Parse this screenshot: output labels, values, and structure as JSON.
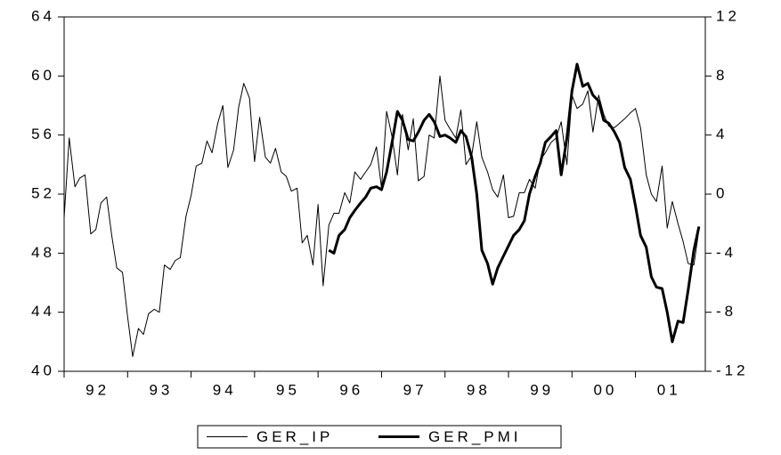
{
  "chart_data": {
    "type": "line",
    "x": [
      1992,
      1992.08,
      1992.17,
      1992.25,
      1992.33,
      1992.42,
      1992.5,
      1992.58,
      1992.67,
      1992.75,
      1992.83,
      1992.92,
      1993,
      1993.08,
      1993.17,
      1993.25,
      1993.33,
      1993.42,
      1993.5,
      1993.58,
      1993.67,
      1993.75,
      1993.83,
      1993.92,
      1994,
      1994.08,
      1994.17,
      1994.25,
      1994.33,
      1994.42,
      1994.5,
      1994.58,
      1994.67,
      1994.75,
      1994.83,
      1994.92,
      1995,
      1995.08,
      1995.17,
      1995.25,
      1995.33,
      1995.42,
      1995.5,
      1995.58,
      1995.67,
      1995.75,
      1995.83,
      1995.92,
      1996,
      1996.08,
      1996.17,
      1996.25,
      1996.33,
      1996.42,
      1996.5,
      1996.58,
      1996.67,
      1996.75,
      1996.83,
      1996.92,
      1997,
      1997.08,
      1997.17,
      1997.25,
      1997.33,
      1997.42,
      1997.5,
      1997.58,
      1997.67,
      1997.75,
      1997.83,
      1997.92,
      1998,
      1998.08,
      1998.17,
      1998.25,
      1998.33,
      1998.42,
      1998.5,
      1998.58,
      1998.67,
      1998.75,
      1998.83,
      1998.92,
      1999,
      1999.08,
      1999.17,
      1999.25,
      1999.33,
      1999.42,
      1999.5,
      1999.58,
      1999.67,
      1999.75,
      1999.83,
      1999.92,
      2000,
      2000.08,
      2000.17,
      2000.25,
      2000.33,
      2000.42,
      2000.5,
      2000.58,
      2000.67,
      2000.75,
      2000.83,
      2000.92,
      2001,
      2001.08,
      2001.17,
      2001.25,
      2001.33,
      2001.42,
      2001.5,
      2001.58,
      2001.67,
      2001.75,
      2001.83,
      2001.92,
      2002
    ],
    "series": [
      {
        "name": "GER_IP",
        "color": "#000000",
        "line_width": 1,
        "values": [
          50.4,
          55.8,
          52.5,
          53.1,
          53.3,
          49.3,
          49.6,
          51.4,
          51.8,
          49.2,
          47.0,
          46.7,
          43.7,
          41.0,
          42.9,
          42.5,
          43.9,
          44.2,
          44.0,
          47.2,
          46.9,
          47.5,
          47.7,
          50.5,
          51.9,
          53.9,
          54.1,
          55.6,
          54.8,
          56.8,
          58.0,
          53.8,
          55.0,
          57.9,
          59.5,
          58.5,
          54.2,
          57.2,
          54.5,
          54.1,
          55.1,
          53.5,
          53.2,
          52.2,
          52.4,
          48.7,
          49.2,
          47.2,
          51.3,
          45.8,
          49.9,
          50.7,
          50.7,
          52.1,
          51.4,
          53.5,
          53.0,
          53.5,
          54.0,
          55.2,
          52.4,
          57.6,
          55.8,
          53.3,
          57.4,
          55.0,
          57.1,
          52.9,
          53.2,
          56.0,
          55.8,
          60.0,
          57.0,
          56.4,
          55.8,
          57.7,
          54.0,
          54.6,
          56.9,
          54.5,
          53.5,
          52.3,
          51.8,
          53.3,
          50.4,
          50.5,
          52.1,
          52.1,
          53.0,
          52.4,
          54.3,
          54.8,
          55.5,
          55.8,
          56.9,
          54.0,
          58.7,
          57.8,
          58.1,
          59.0,
          56.2,
          58.7,
          57.4,
          56.6,
          56.5,
          56.8,
          57.1,
          57.5,
          57.8,
          56.5,
          53.3,
          52.0,
          51.5,
          53.9,
          49.7,
          51.5,
          50.0,
          48.8,
          47.3,
          47.2,
          49.6
        ]
      },
      {
        "name": "GER_PMI",
        "color": "#000000",
        "line_width": 3,
        "axis": "y2",
        "values": [
          null,
          null,
          null,
          null,
          null,
          null,
          null,
          null,
          null,
          null,
          null,
          null,
          null,
          null,
          null,
          null,
          null,
          null,
          null,
          null,
          null,
          null,
          null,
          null,
          null,
          null,
          null,
          null,
          null,
          null,
          null,
          null,
          null,
          null,
          null,
          null,
          null,
          null,
          null,
          null,
          null,
          null,
          null,
          null,
          null,
          null,
          null,
          null,
          null,
          null,
          -3.8,
          -4.0,
          -2.8,
          -2.4,
          -1.6,
          -1.1,
          -0.6,
          -0.2,
          0.4,
          0.5,
          0.3,
          1.5,
          3.6,
          5.6,
          5.0,
          3.7,
          3.6,
          4.2,
          5.0,
          5.4,
          4.9,
          3.9,
          4.0,
          3.8,
          3.5,
          4.3,
          3.9,
          2.5,
          0.0,
          -3.8,
          -4.7,
          -6.1,
          -5.0,
          -4.2,
          -3.5,
          -2.8,
          -2.4,
          -1.8,
          0.0,
          1.2,
          2.1,
          3.5,
          3.9,
          4.3,
          1.3,
          3.8,
          7.0,
          8.8,
          7.3,
          7.5,
          6.7,
          6.3,
          5.0,
          4.8,
          4.2,
          3.5,
          1.8,
          1.0,
          -0.8,
          -2.8,
          -3.6,
          -5.6,
          -6.3,
          -6.4,
          -8.0,
          -10.0,
          -8.6,
          -8.7,
          -6.5,
          -3.8,
          -2.2
        ]
      }
    ],
    "xlim": [
      1992,
      2002.1
    ],
    "xticks": [
      {
        "value": 1992,
        "label": "92"
      },
      {
        "value": 1993,
        "label": "93"
      },
      {
        "value": 1994,
        "label": "94"
      },
      {
        "value": 1995,
        "label": "95"
      },
      {
        "value": 1996,
        "label": "96"
      },
      {
        "value": 1997,
        "label": "97"
      },
      {
        "value": 1998,
        "label": "98"
      },
      {
        "value": 1999,
        "label": "99"
      },
      {
        "value": 2000,
        "label": "00"
      },
      {
        "value": 2001,
        "label": "01"
      }
    ],
    "ylim": [
      40,
      64
    ],
    "yticks": [
      40,
      44,
      48,
      52,
      56,
      60,
      64
    ],
    "y2lim": [
      -12,
      12
    ],
    "y2ticks": [
      -12,
      -8,
      -4,
      0,
      4,
      8,
      12
    ],
    "legend": "bottom"
  }
}
